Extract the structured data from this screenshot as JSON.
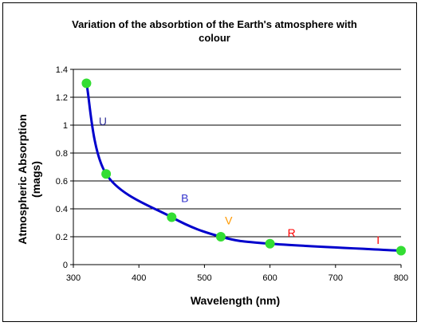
{
  "chart_data": {
    "type": "line",
    "title_lines": [
      "Variation of the absorbtion of the Earth's atmosphere with",
      "colour"
    ],
    "xlabel": "Wavelength (nm)",
    "ylabel_lines": [
      "Atmospheric Absorption",
      "(mags)"
    ],
    "xlim": [
      300,
      800
    ],
    "ylim": [
      0,
      1.4
    ],
    "xticks": [
      300,
      400,
      500,
      600,
      700,
      800
    ],
    "yticks": [
      0,
      0.2,
      0.4,
      0.6,
      0.8,
      1,
      1.2,
      1.4
    ],
    "xtick_labels": [
      "300",
      "400",
      "500",
      "600",
      "700",
      "800"
    ],
    "ytick_labels": [
      "0",
      "0.2",
      "0.4",
      "0.6",
      "0.8",
      "1",
      "1.2",
      "1.4"
    ],
    "grid_y": true,
    "line_color": "#0000cc",
    "marker_color": "#33dd33",
    "points": [
      {
        "x": 320,
        "y": 1.3
      },
      {
        "x": 350,
        "y": 0.65
      },
      {
        "x": 450,
        "y": 0.34
      },
      {
        "x": 525,
        "y": 0.2
      },
      {
        "x": 600,
        "y": 0.15
      },
      {
        "x": 800,
        "y": 0.1
      }
    ],
    "annotations": [
      {
        "text": "U",
        "x": 345,
        "y": 1.0,
        "color": "#333399"
      },
      {
        "text": "B",
        "x": 470,
        "y": 0.45,
        "color": "#3333cc"
      },
      {
        "text": "V",
        "x": 537,
        "y": 0.29,
        "color": "#ff9900"
      },
      {
        "text": "R",
        "x": 633,
        "y": 0.2,
        "color": "#ff0000"
      },
      {
        "text": "I",
        "x": 765,
        "y": 0.15,
        "color": "#ff0000"
      }
    ]
  }
}
